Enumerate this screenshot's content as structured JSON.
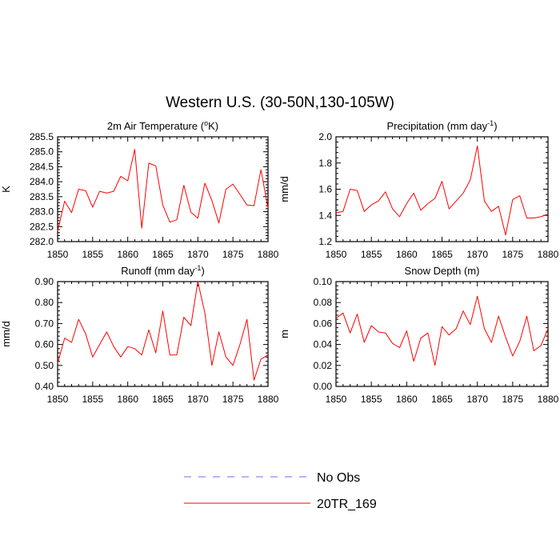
{
  "figure": {
    "title": "Western U.S. (30-50N,130-105W)"
  },
  "legend": {
    "items": [
      {
        "label": "No Obs",
        "color": "#6b6bff",
        "dashed": true
      },
      {
        "label": "20TR_169",
        "color": "#ff0000",
        "dashed": false
      }
    ]
  },
  "chart_data": [
    {
      "type": "line",
      "title": "2m Air Temperature (°K)",
      "title_main": "2m Air Temperature (",
      "title_sup": "o",
      "title_tail": "K)",
      "ylabel": "K",
      "xlabel": "",
      "xlim": [
        1850,
        1880
      ],
      "ylim": [
        282.0,
        285.5
      ],
      "xticks": [
        1850,
        1855,
        1860,
        1865,
        1870,
        1875,
        1880
      ],
      "xtick_labels": [
        "1850",
        "1855",
        "1860",
        "1865",
        "1870",
        "1875",
        "1880"
      ],
      "yticks": [
        282.0,
        282.5,
        283.0,
        283.5,
        284.0,
        284.5,
        285.0,
        285.5
      ],
      "ytick_labels": [
        "282.0",
        "282.5",
        "283.0",
        "283.5",
        "284.0",
        "284.5",
        "285.0",
        "285.5"
      ],
      "series": [
        {
          "name": "20TR_169",
          "color": "#ff0000",
          "x": [
            1850,
            1851,
            1852,
            1853,
            1854,
            1855,
            1856,
            1857,
            1858,
            1859,
            1860,
            1861,
            1862,
            1863,
            1864,
            1865,
            1866,
            1867,
            1868,
            1869,
            1870,
            1871,
            1872,
            1873,
            1874,
            1875,
            1876,
            1877,
            1878,
            1879,
            1880
          ],
          "values": [
            282.35,
            283.35,
            282.97,
            283.75,
            283.7,
            283.15,
            283.68,
            283.62,
            283.68,
            284.18,
            284.03,
            285.08,
            282.45,
            284.62,
            284.53,
            283.22,
            282.65,
            282.73,
            283.88,
            282.98,
            282.78,
            283.95,
            283.37,
            282.62,
            283.75,
            283.92,
            283.58,
            283.22,
            283.2,
            284.4,
            283.12
          ]
        }
      ]
    },
    {
      "type": "line",
      "title": "Precipitation (mm day-1)",
      "title_main": "Precipitation (mm day",
      "title_sup": "-1",
      "title_tail": ")",
      "ylabel": "mm/d",
      "xlabel": "",
      "xlim": [
        1850,
        1880
      ],
      "ylim": [
        1.2,
        2.0
      ],
      "xticks": [
        1850,
        1855,
        1860,
        1865,
        1870,
        1875,
        1880
      ],
      "xtick_labels": [
        "1850",
        "1855",
        "1860",
        "1865",
        "1870",
        "1875",
        "1880"
      ],
      "yticks": [
        1.2,
        1.4,
        1.6,
        1.8,
        2.0
      ],
      "ytick_labels": [
        "1.2",
        "1.4",
        "1.6",
        "1.8",
        "2.0"
      ],
      "series": [
        {
          "name": "20TR_169",
          "color": "#ff0000",
          "x": [
            1850,
            1851,
            1852,
            1853,
            1854,
            1855,
            1856,
            1857,
            1858,
            1859,
            1860,
            1861,
            1862,
            1863,
            1864,
            1865,
            1866,
            1867,
            1868,
            1869,
            1870,
            1871,
            1872,
            1873,
            1874,
            1875,
            1876,
            1877,
            1878,
            1879,
            1880
          ],
          "values": [
            1.42,
            1.43,
            1.6,
            1.59,
            1.43,
            1.48,
            1.51,
            1.58,
            1.45,
            1.39,
            1.49,
            1.57,
            1.44,
            1.49,
            1.53,
            1.66,
            1.45,
            1.51,
            1.57,
            1.67,
            1.93,
            1.51,
            1.43,
            1.47,
            1.25,
            1.52,
            1.55,
            1.38,
            1.38,
            1.39,
            1.41
          ]
        }
      ]
    },
    {
      "type": "line",
      "title": "Runoff (mm day-1)",
      "title_main": "Runoff (mm day",
      "title_sup": "-1",
      "title_tail": ")",
      "ylabel": "mm/d",
      "xlabel": "",
      "xlim": [
        1850,
        1880
      ],
      "ylim": [
        0.4,
        0.9
      ],
      "xticks": [
        1850,
        1855,
        1860,
        1865,
        1870,
        1875,
        1880
      ],
      "xtick_labels": [
        "1850",
        "1855",
        "1860",
        "1865",
        "1870",
        "1875",
        "1880"
      ],
      "yticks": [
        0.4,
        0.5,
        0.6,
        0.7,
        0.8,
        0.9
      ],
      "ytick_labels": [
        "0.40",
        "0.50",
        "0.60",
        "0.70",
        "0.80",
        "0.90"
      ],
      "series": [
        {
          "name": "20TR_169",
          "color": "#ff0000",
          "x": [
            1850,
            1851,
            1852,
            1853,
            1854,
            1855,
            1856,
            1857,
            1858,
            1859,
            1860,
            1861,
            1862,
            1863,
            1864,
            1865,
            1866,
            1867,
            1868,
            1869,
            1870,
            1871,
            1872,
            1873,
            1874,
            1875,
            1876,
            1877,
            1878,
            1879,
            1880
          ],
          "values": [
            0.51,
            0.63,
            0.61,
            0.72,
            0.65,
            0.54,
            0.6,
            0.66,
            0.59,
            0.54,
            0.59,
            0.58,
            0.55,
            0.67,
            0.56,
            0.76,
            0.55,
            0.55,
            0.73,
            0.69,
            0.9,
            0.75,
            0.5,
            0.66,
            0.54,
            0.5,
            0.6,
            0.72,
            0.43,
            0.53,
            0.55
          ]
        }
      ]
    },
    {
      "type": "line",
      "title": "Snow Depth (m)",
      "title_main": "Snow Depth (m)",
      "title_sup": "",
      "title_tail": "",
      "ylabel": "m",
      "xlabel": "",
      "xlim": [
        1850,
        1880
      ],
      "ylim": [
        0.0,
        0.1
      ],
      "xticks": [
        1850,
        1855,
        1860,
        1865,
        1870,
        1875,
        1880
      ],
      "xtick_labels": [
        "1850",
        "1855",
        "1860",
        "1865",
        "1870",
        "1875",
        "1880"
      ],
      "yticks": [
        0.0,
        0.02,
        0.04,
        0.06,
        0.08,
        0.1
      ],
      "ytick_labels": [
        "0.00",
        "0.02",
        "0.04",
        "0.06",
        "0.08",
        "0.10"
      ],
      "series": [
        {
          "name": "20TR_169",
          "color": "#ff0000",
          "x": [
            1850,
            1851,
            1852,
            1853,
            1854,
            1855,
            1856,
            1857,
            1858,
            1859,
            1860,
            1861,
            1862,
            1863,
            1864,
            1865,
            1866,
            1867,
            1868,
            1869,
            1870,
            1871,
            1872,
            1873,
            1874,
            1875,
            1876,
            1877,
            1878,
            1879,
            1880
          ],
          "values": [
            0.065,
            0.07,
            0.051,
            0.069,
            0.042,
            0.058,
            0.052,
            0.051,
            0.041,
            0.037,
            0.053,
            0.024,
            0.046,
            0.051,
            0.02,
            0.057,
            0.049,
            0.055,
            0.072,
            0.059,
            0.086,
            0.055,
            0.042,
            0.067,
            0.047,
            0.029,
            0.043,
            0.067,
            0.034,
            0.039,
            0.055
          ]
        }
      ]
    }
  ]
}
